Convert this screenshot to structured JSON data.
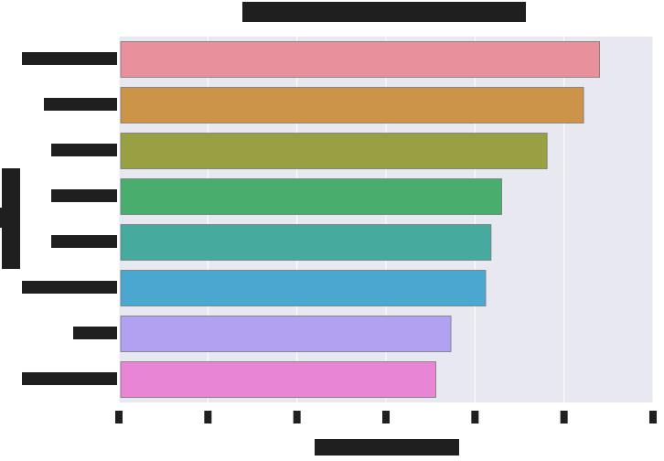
{
  "chart_data": {
    "type": "bar",
    "orientation": "horizontal",
    "title": "",
    "xlabel": "",
    "ylabel": "",
    "categories": [
      "",
      "",
      "",
      "",
      "",
      "",
      "",
      ""
    ],
    "values": [
      5.4,
      5.22,
      4.81,
      4.3,
      4.18,
      4.12,
      3.73,
      3.56
    ],
    "xlim": [
      0,
      6
    ],
    "xticks": [
      0,
      1,
      2,
      3,
      4,
      5,
      6
    ],
    "grid": true,
    "legend": "none",
    "colors": [
      "#e8919c",
      "#cc9448",
      "#99a044",
      "#48ad6d",
      "#46ab9e",
      "#4aa8d0",
      "#b1a1f0",
      "#e885d4"
    ],
    "axes_background": "#e8e8f1",
    "grid_color": "#ffffff"
  }
}
